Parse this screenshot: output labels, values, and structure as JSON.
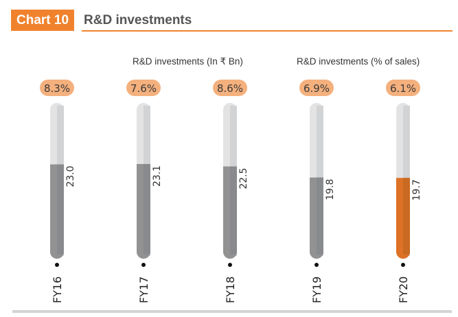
{
  "header": {
    "chart_label": "Chart 10",
    "title": "R&D investments"
  },
  "legend": {
    "series1": "R&D investments (In ₹ Bn)",
    "series2": "R&D investments (% of sales)"
  },
  "colors": {
    "accent": "#f0822d",
    "pill": "#f4b07d",
    "bar_fill": "#929292",
    "bar_fill_highlight": "#dd7126",
    "bar_track": "#e3e3e3"
  },
  "chart_data": {
    "type": "bar",
    "title": "R&D investments",
    "orientation": "vertical",
    "categories": [
      "FY16",
      "FY17",
      "FY18",
      "FY19",
      "FY20"
    ],
    "series": [
      {
        "name": "R&D investments (In ₹ Bn)",
        "values": [
          23.0,
          23.1,
          22.5,
          19.8,
          19.7
        ],
        "labels": [
          "23.0",
          "23.1",
          "22.5",
          "19.8",
          "19.7"
        ]
      },
      {
        "name": "R&D investments (% of sales)",
        "values": [
          8.3,
          7.6,
          8.6,
          6.9,
          6.1
        ],
        "labels": [
          "8.3%",
          "7.6%",
          "8.6%",
          "6.9%",
          "6.1%"
        ]
      }
    ],
    "highlight_category": "FY20",
    "ylim": [
      0,
      38
    ],
    "grid": false,
    "legend_position": "top"
  }
}
